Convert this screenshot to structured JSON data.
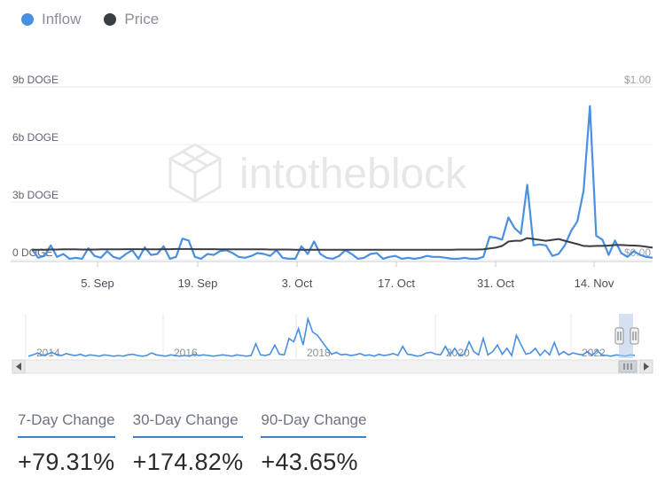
{
  "legend": [
    {
      "label": "Inflow",
      "color": "#4a90e2"
    },
    {
      "label": "Price",
      "color": "#3a3d42"
    }
  ],
  "watermark": "intotheblock",
  "chart_data": {
    "type": "line",
    "title": "",
    "x_ticks": [
      "5. Sep",
      "19. Sep",
      "3. Oct",
      "17. Oct",
      "31. Oct",
      "14. Nov"
    ],
    "y_left": {
      "ticks": [
        "0 DOGE",
        "3b DOGE",
        "6b DOGE",
        "9b DOGE"
      ],
      "range": [
        0,
        9
      ]
    },
    "y_right": {
      "ticks": [
        "$0.00",
        "$1.00"
      ],
      "range": [
        0,
        1
      ]
    },
    "legend_position": "top-left",
    "grid": true,
    "series": [
      {
        "name": "Inflow",
        "axis": "left",
        "color": "#4a90e2",
        "values": [
          0.55,
          0.1,
          0.2,
          0.75,
          0.15,
          0.3,
          0.05,
          0.1,
          0.05,
          0.6,
          0.2,
          0.1,
          0.45,
          0.15,
          0.05,
          0.3,
          0.5,
          0.05,
          0.65,
          0.25,
          0.3,
          0.7,
          0.05,
          0.15,
          1.1,
          1.0,
          0.15,
          0.05,
          0.3,
          0.25,
          0.45,
          0.5,
          0.35,
          0.15,
          0.1,
          0.2,
          0.35,
          0.3,
          0.2,
          0.5,
          0.1,
          0.05,
          0.05,
          0.7,
          0.3,
          0.95,
          0.3,
          0.1,
          0.05,
          0.2,
          0.5,
          0.3,
          0.05,
          0.1,
          0.3,
          0.35,
          0.05,
          0.15,
          0.2,
          0.05,
          0.1,
          0.05,
          0.1,
          0.2,
          0.15,
          0.15,
          0.1,
          0.05,
          0.05,
          0.1,
          0.05,
          0.05,
          0.15,
          1.2,
          1.15,
          1.05,
          2.2,
          1.65,
          1.35,
          3.9,
          0.75,
          0.8,
          0.75,
          0.2,
          0.3,
          0.75,
          1.5,
          2.0,
          3.6,
          8.0,
          1.25,
          1.05,
          0.25,
          1.0,
          0.35,
          0.15,
          0.45,
          0.25,
          0.15,
          0.1
        ]
      },
      {
        "name": "Price",
        "axis": "right",
        "color": "#3a3d42",
        "values": [
          0.058,
          0.058,
          0.058,
          0.059,
          0.059,
          0.06,
          0.06,
          0.06,
          0.059,
          0.059,
          0.059,
          0.06,
          0.06,
          0.06,
          0.06,
          0.061,
          0.061,
          0.061,
          0.06,
          0.06,
          0.06,
          0.061,
          0.061,
          0.062,
          0.062,
          0.062,
          0.061,
          0.061,
          0.061,
          0.061,
          0.06,
          0.06,
          0.06,
          0.06,
          0.06,
          0.06,
          0.06,
          0.06,
          0.059,
          0.059,
          0.059,
          0.059,
          0.058,
          0.058,
          0.058,
          0.058,
          0.058,
          0.058,
          0.058,
          0.058,
          0.058,
          0.058,
          0.058,
          0.058,
          0.058,
          0.058,
          0.058,
          0.058,
          0.058,
          0.058,
          0.058,
          0.058,
          0.058,
          0.058,
          0.058,
          0.058,
          0.058,
          0.058,
          0.059,
          0.059,
          0.059,
          0.059,
          0.06,
          0.065,
          0.07,
          0.08,
          0.105,
          0.11,
          0.11,
          0.125,
          0.12,
          0.115,
          0.11,
          0.115,
          0.12,
          0.11,
          0.1,
          0.09,
          0.08,
          0.078,
          0.08,
          0.08,
          0.082,
          0.085,
          0.085,
          0.083,
          0.082,
          0.08,
          0.075,
          0.07
        ]
      }
    ]
  },
  "navigator": {
    "year_labels": [
      "2014",
      "2016",
      "2018",
      "2020",
      "2022"
    ],
    "overview": [
      0.3,
      0.5,
      0.8,
      0.4,
      0.6,
      0.9,
      0.5,
      0.4,
      0.7,
      0.5,
      0.4,
      0.6,
      0.3,
      0.5,
      0.4,
      0.3,
      0.5,
      0.4,
      0.3,
      0.4,
      0.3,
      0.5,
      0.6,
      0.4,
      0.3,
      0.4,
      0.8,
      0.5,
      0.4,
      0.3,
      0.5,
      0.4,
      0.3,
      0.4,
      0.3,
      0.6,
      0.4,
      0.5,
      0.4,
      0.3,
      0.4,
      0.5,
      0.4,
      0.3,
      0.5,
      0.4,
      0.3,
      0.4,
      2.2,
      0.5,
      0.4,
      0.6,
      2.0,
      0.6,
      0.5,
      3.0,
      2.5,
      4.5,
      2.0,
      6.0,
      4.0,
      3.5,
      2.5,
      1.5,
      0.6,
      0.9,
      0.5,
      0.6,
      0.4,
      0.5,
      0.7,
      0.4,
      0.5,
      0.3,
      0.6,
      0.4,
      0.5,
      0.7,
      0.4,
      1.8,
      0.6,
      0.5,
      0.3,
      0.4,
      0.8,
      0.9,
      0.6,
      0.5,
      1.8,
      0.5,
      1.5,
      0.4,
      0.6,
      2.5,
      1.0,
      0.5,
      3.0,
      0.5,
      1.0,
      2.0,
      0.6,
      1.5,
      0.4,
      3.5,
      2.0,
      0.6,
      0.8,
      1.5,
      0.4,
      1.2,
      0.5,
      2.4,
      0.5,
      1.0,
      0.5,
      0.8,
      0.6,
      0.5,
      1.0,
      0.4,
      1.2,
      0.5,
      0.4,
      0.3,
      0.5,
      0.4,
      0.3,
      0.5,
      0.4
    ]
  },
  "changes": [
    {
      "label": "7-Day Change",
      "value": "+79.31%"
    },
    {
      "label": "30-Day Change",
      "value": "+174.82%"
    },
    {
      "label": "90-Day Change",
      "value": "+43.65%"
    }
  ]
}
